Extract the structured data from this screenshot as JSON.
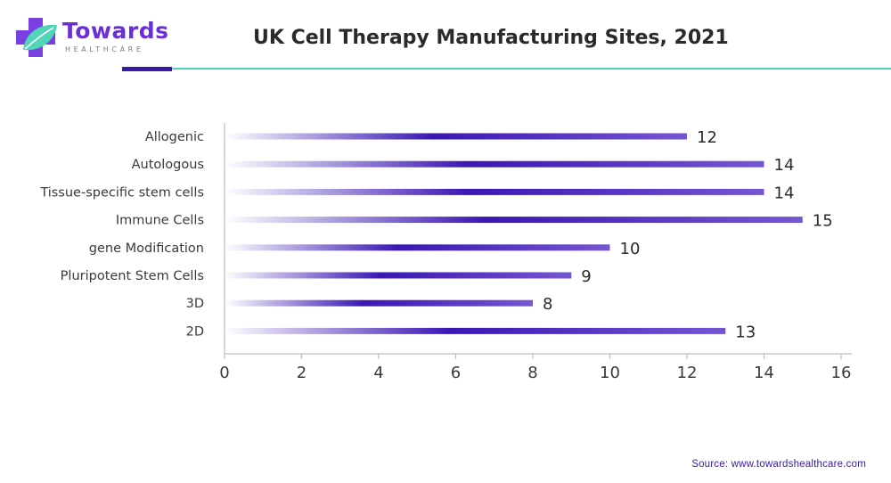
{
  "brand": {
    "name": "Towards",
    "tagline": "HEALTHCARE",
    "colors": {
      "primary": "#6a2fd6",
      "accent": "#4fd6b6",
      "dark": "#3a1ba8"
    },
    "logo_icon": "leaf-cross-icon"
  },
  "source": "Source: www.towardshealthcare.com",
  "chart_data": {
    "type": "bar",
    "orientation": "horizontal",
    "title": "UK Cell Therapy Manufacturing Sites, 2021",
    "categories": [
      "Allogenic",
      "Autologous",
      "Tissue-specific stem cells",
      "Immune Cells",
      "gene Modification",
      "Pluripotent Stem Cells",
      "3D",
      "2D"
    ],
    "values": [
      12,
      14,
      14,
      15,
      10,
      9,
      8,
      13
    ],
    "xlim": [
      0,
      16
    ],
    "xticks": [
      0,
      2,
      4,
      6,
      8,
      10,
      12,
      14,
      16
    ],
    "xlabel": "",
    "ylabel": "",
    "grid": false,
    "legend": "none",
    "bar_gradient": [
      "#ffffff",
      "#3a17b2",
      "#7556d2"
    ]
  }
}
